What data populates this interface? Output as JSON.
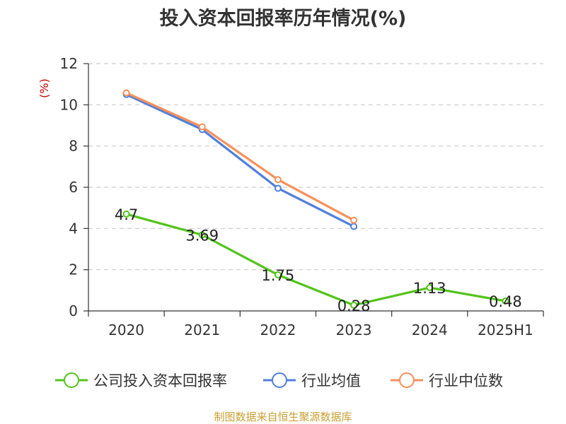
{
  "chart_data": {
    "type": "line",
    "title": "投入资本回报率历年情况(%)",
    "ylabel": "(%)",
    "xlabel": "",
    "categories": [
      "2020",
      "2021",
      "2022",
      "2023",
      "2024",
      "2025H1"
    ],
    "ylim": [
      0,
      12
    ],
    "yticks": [
      0,
      2,
      4,
      6,
      8,
      10,
      12
    ],
    "grid": true,
    "legend_position": "bottom",
    "series": [
      {
        "name": "公司投入资本回报率",
        "color": "#52c41a",
        "values": [
          4.7,
          3.69,
          1.75,
          0.28,
          1.13,
          0.48
        ],
        "labels": [
          "4.7",
          "3.69",
          "1.75",
          "0.28",
          "1.13",
          "0.48"
        ]
      },
      {
        "name": "行业均值",
        "color": "#4f7fdc",
        "values": [
          10.5,
          8.8,
          5.95,
          4.1,
          null,
          null
        ]
      },
      {
        "name": "行业中位数",
        "color": "#f7905a",
        "values": [
          10.58,
          8.93,
          6.37,
          4.4,
          null,
          null
        ]
      }
    ]
  },
  "source": "制图数据来自恒生聚源数据库"
}
